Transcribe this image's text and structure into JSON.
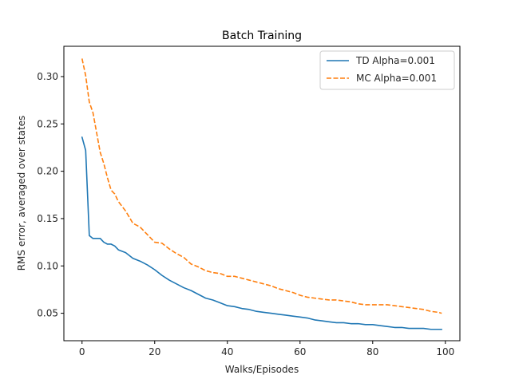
{
  "chart_data": {
    "type": "line",
    "title": "Batch Training",
    "xlabel": "Walks/Episodes",
    "ylabel": "RMS error, averaged over states",
    "xlim": [
      -5,
      104
    ],
    "ylim": [
      0.021,
      0.332
    ],
    "xticks": [
      0,
      20,
      40,
      60,
      80,
      100
    ],
    "yticks": [
      0.05,
      0.1,
      0.15,
      0.2,
      0.25,
      0.3
    ],
    "ytick_labels": [
      "0.05",
      "0.10",
      "0.15",
      "0.20",
      "0.25",
      "0.30"
    ],
    "grid": false,
    "legend_position": "top-right",
    "series": [
      {
        "name": "TD Alpha=0.001",
        "color": "#1f77b4",
        "style": "solid",
        "x": [
          0,
          1,
          2,
          3,
          4,
          5,
          6,
          7,
          8,
          9,
          10,
          12,
          14,
          16,
          18,
          20,
          22,
          24,
          26,
          28,
          30,
          32,
          34,
          36,
          38,
          40,
          42,
          44,
          46,
          48,
          50,
          52,
          54,
          56,
          58,
          60,
          62,
          64,
          66,
          68,
          70,
          72,
          74,
          76,
          78,
          80,
          82,
          84,
          86,
          88,
          90,
          92,
          94,
          96,
          98,
          99
        ],
        "y": [
          0.236,
          0.222,
          0.132,
          0.129,
          0.129,
          0.129,
          0.125,
          0.123,
          0.123,
          0.121,
          0.117,
          0.114,
          0.108,
          0.105,
          0.101,
          0.096,
          0.09,
          0.085,
          0.081,
          0.077,
          0.074,
          0.07,
          0.066,
          0.064,
          0.061,
          0.058,
          0.057,
          0.055,
          0.054,
          0.052,
          0.051,
          0.05,
          0.049,
          0.048,
          0.047,
          0.046,
          0.045,
          0.043,
          0.042,
          0.041,
          0.04,
          0.04,
          0.039,
          0.039,
          0.038,
          0.038,
          0.037,
          0.036,
          0.035,
          0.035,
          0.034,
          0.034,
          0.034,
          0.033,
          0.033,
          0.033
        ]
      },
      {
        "name": "MC Alpha=0.001",
        "color": "#ff7f0e",
        "style": "dashed",
        "x": [
          0,
          1,
          2,
          3,
          4,
          5,
          6,
          7,
          8,
          9,
          10,
          12,
          14,
          16,
          18,
          20,
          22,
          24,
          26,
          28,
          30,
          32,
          34,
          36,
          38,
          40,
          42,
          44,
          46,
          48,
          50,
          52,
          54,
          56,
          58,
          60,
          62,
          64,
          66,
          68,
          70,
          72,
          74,
          76,
          78,
          80,
          82,
          84,
          86,
          88,
          90,
          92,
          94,
          96,
          98,
          99
        ],
        "y": [
          0.319,
          0.301,
          0.273,
          0.262,
          0.241,
          0.22,
          0.208,
          0.193,
          0.18,
          0.176,
          0.168,
          0.158,
          0.145,
          0.141,
          0.133,
          0.125,
          0.124,
          0.118,
          0.113,
          0.109,
          0.102,
          0.099,
          0.095,
          0.093,
          0.092,
          0.089,
          0.089,
          0.087,
          0.085,
          0.083,
          0.081,
          0.079,
          0.076,
          0.074,
          0.072,
          0.069,
          0.067,
          0.066,
          0.065,
          0.064,
          0.064,
          0.063,
          0.062,
          0.06,
          0.059,
          0.059,
          0.059,
          0.059,
          0.058,
          0.057,
          0.056,
          0.055,
          0.054,
          0.052,
          0.051,
          0.05
        ]
      }
    ]
  }
}
